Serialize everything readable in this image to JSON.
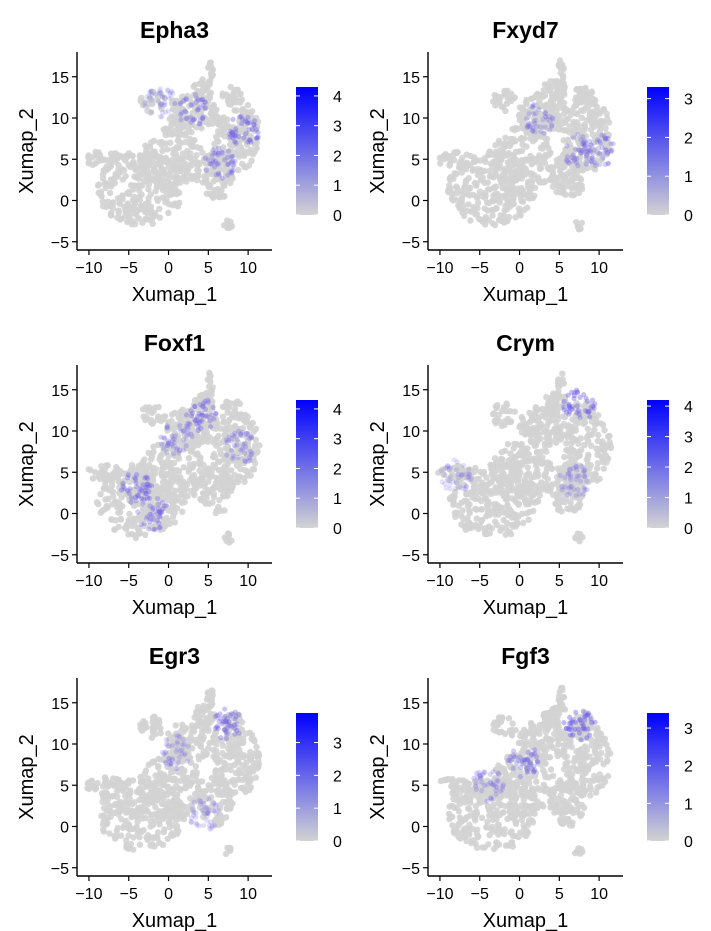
{
  "colors": {
    "low": "#d3d3d3",
    "high": "#0000ff",
    "axis": "#000000",
    "background": "#ffffff"
  },
  "chart_data": [
    {
      "type": "scatter",
      "title": "Epha3",
      "xlabel": "Xumap_1",
      "ylabel": "Xumap_2",
      "xlim": [
        -11.5,
        13
      ],
      "ylim": [
        -6,
        18
      ],
      "xticks": [
        "-10",
        "-5",
        "0",
        "5",
        "10"
      ],
      "yticks": [
        "-5",
        "0",
        "5",
        "10",
        "15"
      ],
      "legend": {
        "min": 0,
        "max": 4.3,
        "ticks": [
          "0",
          "1",
          "2",
          "3",
          "4"
        ]
      },
      "hotspots": [
        {
          "x": 9.5,
          "y": 8.5,
          "level": 0.7
        },
        {
          "x": 6.5,
          "y": 4.5,
          "level": 0.6
        },
        {
          "x": 3,
          "y": 11,
          "level": 0.55
        },
        {
          "x": -1,
          "y": 12,
          "level": 0.35
        }
      ]
    },
    {
      "type": "scatter",
      "title": "Fxyd7",
      "xlabel": "Xumap_1",
      "ylabel": "Xumap_2",
      "xlim": [
        -11.5,
        13
      ],
      "ylim": [
        -6,
        18
      ],
      "xticks": [
        "-10",
        "-5",
        "0",
        "5",
        "10"
      ],
      "yticks": [
        "-5",
        "0",
        "5",
        "10",
        "15"
      ],
      "legend": {
        "min": 0,
        "max": 3.3,
        "ticks": [
          "0",
          "1",
          "2",
          "3"
        ]
      },
      "hotspots": [
        {
          "x": 7.5,
          "y": 6,
          "level": 0.55
        },
        {
          "x": 2.5,
          "y": 10,
          "level": 0.45
        },
        {
          "x": 10,
          "y": 6,
          "level": 0.5
        }
      ]
    },
    {
      "type": "scatter",
      "title": "Foxf1",
      "xlabel": "Xumap_1",
      "ylabel": "Xumap_2",
      "xlim": [
        -11.5,
        13
      ],
      "ylim": [
        -6,
        18
      ],
      "xticks": [
        "-10",
        "-5",
        "0",
        "5",
        "10"
      ],
      "yticks": [
        "-5",
        "0",
        "5",
        "10",
        "15"
      ],
      "legend": {
        "min": 0,
        "max": 4.3,
        "ticks": [
          "0",
          "1",
          "2",
          "3",
          "4"
        ]
      },
      "hotspots": [
        {
          "x": -4,
          "y": 3,
          "level": 0.7
        },
        {
          "x": -2,
          "y": 0,
          "level": 0.6
        },
        {
          "x": 4,
          "y": 12,
          "level": 0.65
        },
        {
          "x": 9,
          "y": 8,
          "level": 0.5
        },
        {
          "x": 1,
          "y": 9,
          "level": 0.5
        }
      ]
    },
    {
      "type": "scatter",
      "title": "Crym",
      "xlabel": "Xumap_1",
      "ylabel": "Xumap_2",
      "xlim": [
        -11.5,
        13
      ],
      "ylim": [
        -6,
        18
      ],
      "xticks": [
        "-10",
        "-5",
        "0",
        "5",
        "10"
      ],
      "yticks": [
        "-5",
        "0",
        "5",
        "10",
        "15"
      ],
      "legend": {
        "min": 0,
        "max": 4.2,
        "ticks": [
          "0",
          "1",
          "2",
          "3",
          "4"
        ]
      },
      "hotspots": [
        {
          "x": 7.5,
          "y": 13,
          "level": 0.75
        },
        {
          "x": 7,
          "y": 4,
          "level": 0.45
        },
        {
          "x": -8,
          "y": 4.5,
          "level": 0.35
        }
      ]
    },
    {
      "type": "scatter",
      "title": "Egr3",
      "xlabel": "Xumap_1",
      "ylabel": "Xumap_2",
      "xlim": [
        -11.5,
        13
      ],
      "ylim": [
        -6,
        18
      ],
      "xticks": [
        "-10",
        "-5",
        "0",
        "5",
        "10"
      ],
      "yticks": [
        "-5",
        "0",
        "5",
        "10",
        "15"
      ],
      "legend": {
        "min": 0,
        "max": 3.9,
        "ticks": [
          "0",
          "1",
          "2",
          "3"
        ]
      },
      "hotspots": [
        {
          "x": 7.5,
          "y": 12.5,
          "level": 0.65
        },
        {
          "x": 1,
          "y": 9,
          "level": 0.4
        },
        {
          "x": 4.5,
          "y": 1.5,
          "level": 0.4
        }
      ]
    },
    {
      "type": "scatter",
      "title": "Fgf3",
      "xlabel": "Xumap_1",
      "ylabel": "Xumap_2",
      "xlim": [
        -11.5,
        13
      ],
      "ylim": [
        -6,
        18
      ],
      "xticks": [
        "-10",
        "-5",
        "0",
        "5",
        "10"
      ],
      "yticks": [
        "-5",
        "0",
        "5",
        "10",
        "15"
      ],
      "legend": {
        "min": 0,
        "max": 3.4,
        "ticks": [
          "0",
          "1",
          "2",
          "3"
        ]
      },
      "hotspots": [
        {
          "x": 7.5,
          "y": 12.5,
          "level": 0.8
        },
        {
          "x": 0.5,
          "y": 8,
          "level": 0.6
        },
        {
          "x": -4,
          "y": 5,
          "level": 0.45
        }
      ]
    }
  ]
}
